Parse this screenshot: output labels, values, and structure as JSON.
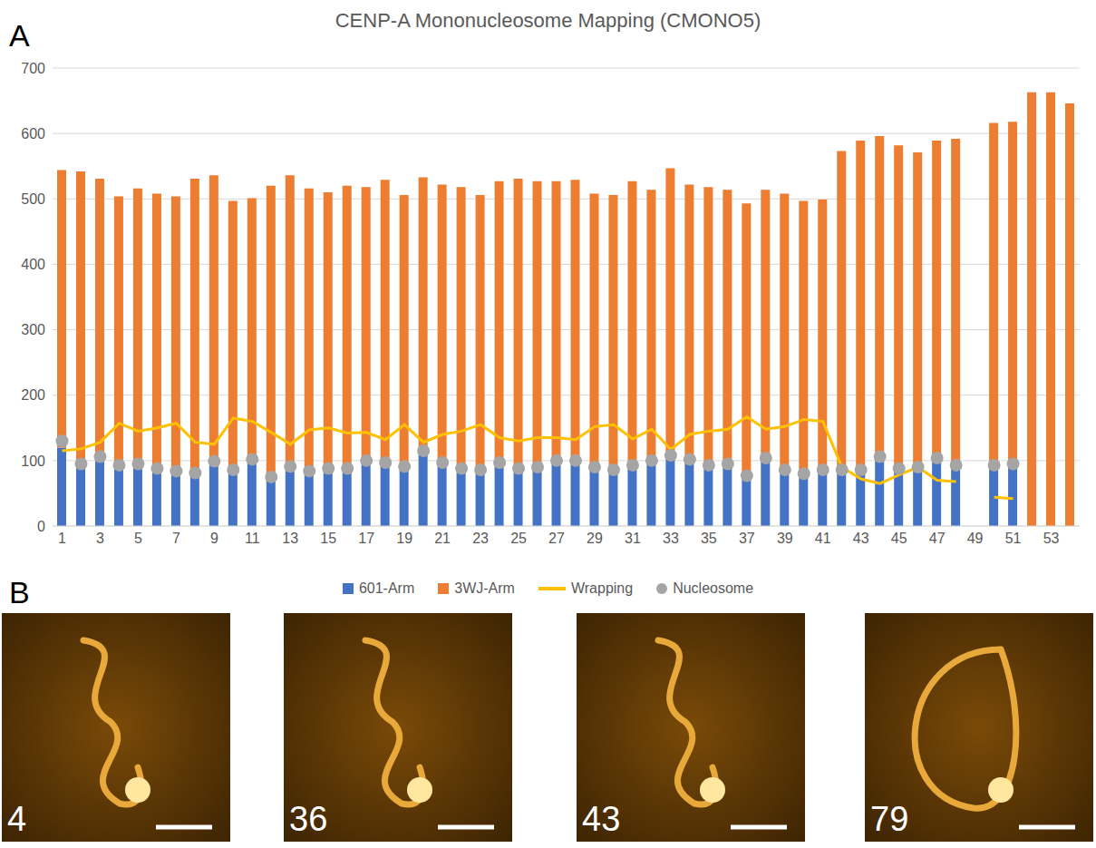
{
  "chart_data": {
    "type": "bar",
    "title": "CENP-A Mononucleosome Mapping (CMONO5)",
    "panel_label": "A",
    "categories": [
      "1",
      null,
      "3",
      null,
      "5",
      null,
      "7",
      null,
      "9",
      null,
      "11",
      null,
      "13",
      null,
      "15",
      null,
      "17",
      null,
      "19",
      null,
      "21",
      null,
      "23",
      null,
      "25",
      null,
      "27",
      null,
      "29",
      null,
      "31",
      null,
      "33",
      null,
      "35",
      null,
      "37",
      null,
      "39",
      null,
      "41",
      null,
      "43",
      null,
      "45",
      null,
      "47",
      null,
      "49",
      null,
      "51",
      null,
      "53",
      null
    ],
    "stacked": true,
    "grid": true,
    "legend": "bottom",
    "ylim": [
      0,
      700
    ],
    "yticks": [
      0,
      100,
      200,
      300,
      400,
      500,
      600,
      700
    ],
    "series": [
      {
        "name": "601-Arm",
        "type": "bar",
        "color": "#4472c4",
        "values": [
          120,
          95,
          106,
          93,
          95,
          88,
          84,
          81,
          99,
          86,
          102,
          75,
          91,
          84,
          88,
          88,
          100,
          97,
          91,
          112,
          97,
          88,
          86,
          97,
          88,
          90,
          100,
          100,
          90,
          86,
          93,
          100,
          108,
          102,
          93,
          95,
          77,
          104,
          86,
          80,
          86,
          86,
          80,
          106,
          88,
          90,
          104,
          93,
          null,
          93,
          95,
          null,
          null,
          null
        ]
      },
      {
        "name": "3WJ-Arm",
        "type": "bar",
        "color": "#ed7d31",
        "values": [
          424,
          447,
          425,
          411,
          421,
          420,
          420,
          450,
          437,
          411,
          399,
          445,
          445,
          432,
          422,
          432,
          418,
          432,
          415,
          421,
          425,
          430,
          420,
          430,
          443,
          437,
          427,
          429,
          418,
          420,
          434,
          414,
          439,
          420,
          425,
          419,
          416,
          410,
          422,
          417,
          413,
          487,
          509,
          490,
          494,
          481,
          485,
          499,
          null,
          523,
          523,
          663,
          663,
          646
        ]
      },
      {
        "name": "Wrapping",
        "type": "line",
        "color": "#ffc000",
        "values": [
          115,
          118,
          128,
          157,
          145,
          150,
          157,
          128,
          125,
          165,
          160,
          143,
          125,
          147,
          150,
          142,
          143,
          132,
          155,
          128,
          140,
          145,
          155,
          135,
          130,
          135,
          135,
          132,
          152,
          155,
          133,
          148,
          117,
          140,
          145,
          148,
          167,
          148,
          152,
          163,
          160,
          90,
          72,
          65,
          78,
          90,
          70,
          68,
          null,
          44,
          42,
          null,
          null,
          null
        ]
      },
      {
        "name": "Nucleosome",
        "type": "scatter",
        "marker": "circle",
        "color": "#a5a5a5",
        "values": [
          130,
          95,
          106,
          93,
          95,
          88,
          84,
          81,
          99,
          86,
          102,
          75,
          91,
          84,
          88,
          88,
          100,
          97,
          91,
          115,
          97,
          88,
          86,
          97,
          88,
          90,
          100,
          100,
          90,
          86,
          93,
          100,
          108,
          102,
          93,
          95,
          77,
          104,
          86,
          80,
          86,
          86,
          86,
          106,
          88,
          90,
          104,
          93,
          null,
          93,
          95,
          null,
          null,
          null
        ]
      }
    ]
  },
  "panel_b": {
    "panel_label": "B",
    "images": [
      "4",
      "36",
      "43",
      "79"
    ]
  }
}
